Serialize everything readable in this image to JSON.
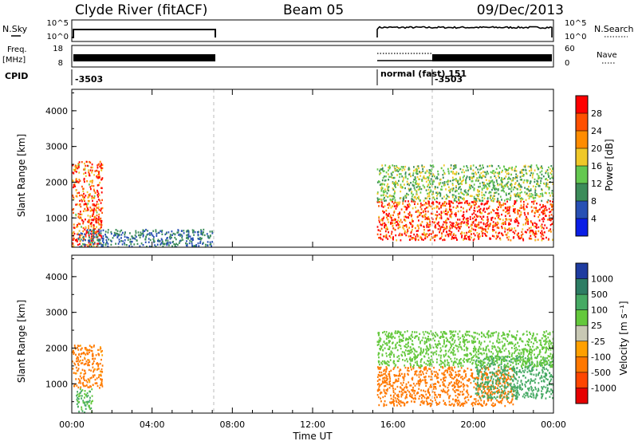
{
  "header": {
    "station": "Clyde River (fitACF)",
    "beam": "Beam 05",
    "date": "09/Dec/2013"
  },
  "strip": {
    "nsky_label": "N.Sky",
    "nsky_ticks": [
      "10^5",
      "10^0"
    ],
    "nsearch_label": "N.Search",
    "nsearch_ticks": [
      "10^5",
      "10^0"
    ],
    "freq_label_top": "Freq.",
    "freq_label_unit": "[MHz]",
    "freq_ticks": [
      "18",
      "8"
    ],
    "nave_label": "Nave",
    "nave_ticks": [
      "60",
      "0"
    ],
    "cpid_label": "CPID",
    "cpid_entries": [
      "-3503",
      "normal (fast) 151",
      "-3503"
    ]
  },
  "axes": {
    "xlabel": "Time UT",
    "ylabel": "Slant Range [km]",
    "xticks": [
      "00:00",
      "04:00",
      "08:00",
      "12:00",
      "16:00",
      "20:00",
      "00:00"
    ],
    "yticks": [
      "1000",
      "2000",
      "3000",
      "4000"
    ]
  },
  "colorbars": {
    "power": {
      "label": "Power [dB]",
      "ticks": [
        "4",
        "8",
        "12",
        "16",
        "20",
        "24",
        "28"
      ],
      "colors": [
        "#0a1ee6",
        "#2850b4",
        "#3c8c5a",
        "#64c850",
        "#f0c828",
        "#ff8c00",
        "#ff5000",
        "#ff0000"
      ]
    },
    "velocity": {
      "label": "Velocity [m s⁻¹]",
      "ticks": [
        "1000",
        "500",
        "100",
        "25",
        "-25",
        "-100",
        "-500",
        "-1000"
      ],
      "colors": [
        "#1e3ca0",
        "#2d7d64",
        "#46aa64",
        "#64c83c",
        "#c8c8b4",
        "#ffa000",
        "#ff7800",
        "#ff4600",
        "#e60000"
      ]
    }
  },
  "chart_data": {
    "type": "heatmap",
    "title": "Clyde River (fitACF)",
    "xlabel": "Time UT",
    "ylabel": "Slant Range [km]",
    "x_range_hours": [
      0,
      24
    ],
    "y_range_km": [
      180,
      4600
    ],
    "data_gap_hours": [
      7.0,
      15.2
    ],
    "cpid_switch_hours": [
      15.2,
      18.0
    ],
    "power_scatter_regions": [
      {
        "t_start": 0.0,
        "t_end": 1.5,
        "r_min": 200,
        "r_max": 2600,
        "power_db": 26
      },
      {
        "t_start": 0.3,
        "t_end": 7.0,
        "r_min": 200,
        "r_max": 700,
        "power_db": 8
      },
      {
        "t_start": 15.2,
        "t_end": 24.0,
        "r_min": 400,
        "r_max": 1500,
        "power_db": 28
      },
      {
        "t_start": 15.2,
        "t_end": 24.0,
        "r_min": 1500,
        "r_max": 2500,
        "power_db": 14
      }
    ],
    "velocity_scatter_regions": [
      {
        "t_start": 0.0,
        "t_end": 1.5,
        "r_min": 900,
        "r_max": 2100,
        "velocity": -150
      },
      {
        "t_start": 0.2,
        "t_end": 1.0,
        "r_min": 200,
        "r_max": 900,
        "velocity": 100
      },
      {
        "t_start": 15.2,
        "t_end": 22.0,
        "r_min": 400,
        "r_max": 1500,
        "velocity": -200
      },
      {
        "t_start": 20.0,
        "t_end": 24.0,
        "r_min": 600,
        "r_max": 1800,
        "velocity": 200
      },
      {
        "t_start": 15.2,
        "t_end": 24.0,
        "r_min": 1500,
        "r_max": 2500,
        "velocity": 50
      }
    ]
  }
}
